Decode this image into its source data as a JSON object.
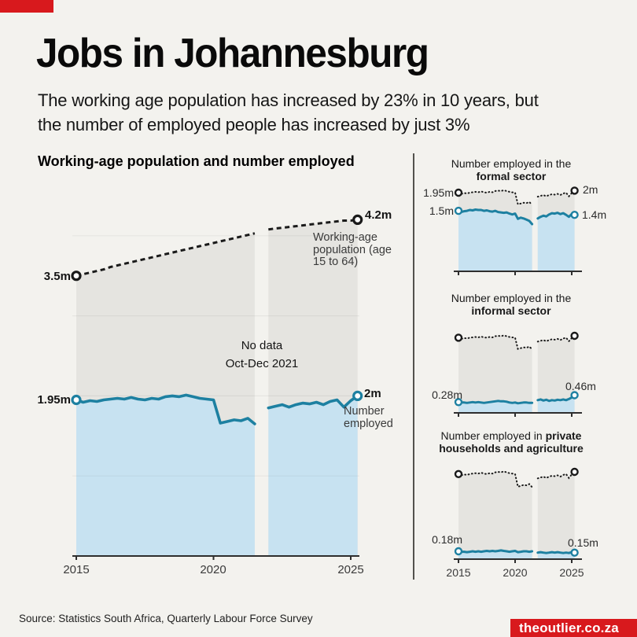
{
  "theme": {
    "background": "#f3f2ee",
    "accent_red": "#d8191d",
    "teal": "#1d80a1",
    "light_blue_fill": "#c7e2f1",
    "gray_fill": "#e5e4e0",
    "dark_line": "#1a1a1a"
  },
  "header": {
    "title": "Jobs in Johannesburg",
    "subtitle_line1": "The working age population has increased by 23% in 10 years, but",
    "subtitle_line2": "the number of employed people has increased by just 3%"
  },
  "chart_data": [
    {
      "type": "area",
      "title": "Working-age population and number employed",
      "xlabel": "",
      "ylabel": "",
      "xticks": [
        "2015",
        "2020",
        "2025"
      ],
      "gap": {
        "line1": "No data",
        "line2": "Oct-Dec 2021",
        "period": "Q4 2021"
      },
      "x_seg1": [
        2015,
        2015.25,
        2015.5,
        2015.75,
        2016,
        2016.25,
        2016.5,
        2016.75,
        2017,
        2017.25,
        2017.5,
        2017.75,
        2018,
        2018.25,
        2018.5,
        2018.75,
        2019,
        2019.25,
        2019.5,
        2019.75,
        2020,
        2020.25,
        2020.5,
        2020.75,
        2021,
        2021.25,
        2021.5
      ],
      "x_seg2": [
        2022,
        2022.25,
        2022.5,
        2022.75,
        2023,
        2023.25,
        2023.5,
        2023.75,
        2024,
        2024.25,
        2024.5,
        2024.75,
        2025,
        2025.25
      ],
      "series": [
        {
          "name": "Working-age population (age 15 to 64)",
          "line": "dashed",
          "color": "#1a1a1a",
          "fill": "#e5e4e0",
          "start_label": "3.5m",
          "end_label": "4.2m",
          "unit": "millions",
          "seg1": [
            3.5,
            3.52,
            3.54,
            3.56,
            3.58,
            3.61,
            3.63,
            3.65,
            3.67,
            3.69,
            3.71,
            3.73,
            3.75,
            3.77,
            3.79,
            3.81,
            3.83,
            3.85,
            3.87,
            3.89,
            3.91,
            3.93,
            3.95,
            3.97,
            3.99,
            4.01,
            4.03
          ],
          "seg2": [
            4.08,
            4.09,
            4.1,
            4.11,
            4.12,
            4.13,
            4.14,
            4.15,
            4.16,
            4.17,
            4.18,
            4.19,
            4.19,
            4.2
          ]
        },
        {
          "name": "Number employed",
          "line": "solid",
          "color": "#1d80a1",
          "fill": "#c7e2f1",
          "start_label": "1.95m",
          "end_label": "2m",
          "unit": "millions",
          "seg1": [
            1.95,
            1.92,
            1.94,
            1.93,
            1.95,
            1.96,
            1.97,
            1.96,
            1.98,
            1.96,
            1.95,
            1.97,
            1.96,
            1.99,
            2.0,
            1.99,
            2.01,
            1.99,
            1.97,
            1.96,
            1.95,
            1.66,
            1.68,
            1.7,
            1.69,
            1.72,
            1.65
          ],
          "seg2": [
            1.85,
            1.87,
            1.89,
            1.86,
            1.89,
            1.91,
            1.9,
            1.92,
            1.89,
            1.93,
            1.95,
            1.86,
            1.94,
            2.0
          ]
        }
      ]
    },
    {
      "type": "area",
      "title_prefix": "Number employed in the",
      "title_bold": "formal sector",
      "reference_series": "Number employed (total, dotted)",
      "labels": {
        "ref_start": "1.95m",
        "ref_end": "2m",
        "start": "1.5m",
        "end": "1.4m"
      },
      "seg1": [
        1.5,
        1.47,
        1.49,
        1.5,
        1.52,
        1.51,
        1.53,
        1.52,
        1.52,
        1.5,
        1.51,
        1.49,
        1.48,
        1.5,
        1.47,
        1.46,
        1.45,
        1.46,
        1.43,
        1.41,
        1.43,
        1.3,
        1.33,
        1.31,
        1.28,
        1.25,
        1.17
      ],
      "seg2": [
        1.31,
        1.35,
        1.38,
        1.36,
        1.41,
        1.44,
        1.43,
        1.45,
        1.42,
        1.44,
        1.4,
        1.35,
        1.42,
        1.4
      ]
    },
    {
      "type": "area",
      "title_prefix": "Number employed in the",
      "title_bold": "informal sector",
      "reference_series": "Number employed (total, dotted)",
      "labels": {
        "start": "0.28m",
        "end": "0.46m"
      },
      "seg1": [
        0.28,
        0.27,
        0.27,
        0.26,
        0.27,
        0.28,
        0.27,
        0.28,
        0.27,
        0.26,
        0.27,
        0.28,
        0.29,
        0.3,
        0.31,
        0.3,
        0.3,
        0.29,
        0.27,
        0.26,
        0.27,
        0.25,
        0.26,
        0.27,
        0.27,
        0.26,
        0.26
      ],
      "seg2": [
        0.33,
        0.35,
        0.32,
        0.34,
        0.31,
        0.33,
        0.32,
        0.34,
        0.33,
        0.35,
        0.33,
        0.36,
        0.4,
        0.46
      ]
    },
    {
      "type": "area",
      "title_prefix": "Number employed in",
      "title_bold": "private households and agriculture",
      "reference_series": "Number employed (total, dotted)",
      "xticks": [
        "2015",
        "2020",
        "2025"
      ],
      "labels": {
        "start": "0.18m",
        "end": "0.15m"
      },
      "seg1": [
        0.18,
        0.17,
        0.17,
        0.16,
        0.17,
        0.18,
        0.17,
        0.18,
        0.17,
        0.18,
        0.19,
        0.18,
        0.19,
        0.18,
        0.19,
        0.2,
        0.19,
        0.18,
        0.17,
        0.18,
        0.19,
        0.16,
        0.17,
        0.18,
        0.18,
        0.17,
        0.18
      ],
      "seg2": [
        0.15,
        0.16,
        0.15,
        0.14,
        0.15,
        0.16,
        0.15,
        0.16,
        0.15,
        0.14,
        0.15,
        0.14,
        0.16,
        0.15
      ]
    }
  ],
  "footer": {
    "source": "Source: Statistics South Africa, Quarterly Labour Force Survey",
    "badge": "theoutlier.co.za"
  }
}
